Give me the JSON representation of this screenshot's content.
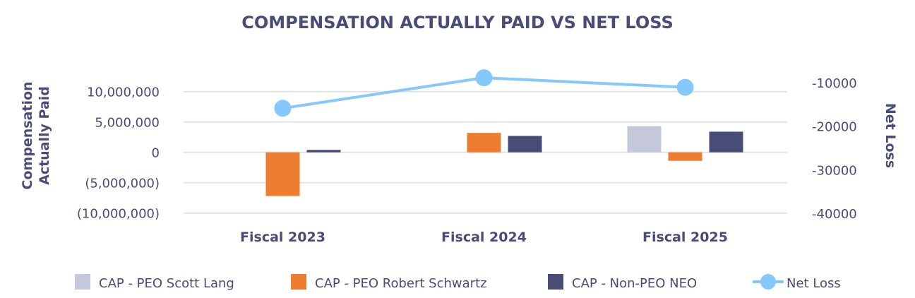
{
  "chart_data": {
    "type": "bar",
    "title": "COMPENSATION ACTUALLY PAID VS NET LOSS",
    "categories": [
      "Fiscal 2023",
      "Fiscal 2024",
      "Fiscal 2025"
    ],
    "ylabel": "Compensation Actually Paid",
    "y2label": "Net Loss",
    "yticks": [
      10000000,
      5000000,
      0,
      -5000000,
      -10000000
    ],
    "ytick_labels": [
      "10,000,000",
      "5,000,000",
      "0",
      "(5,000,000)",
      "(10,000,000)"
    ],
    "y2ticks": [
      -10000,
      -20000,
      -30000,
      -40000
    ],
    "y2tick_labels": [
      "-10000",
      "-20000",
      "-30000",
      "-40000"
    ],
    "grid": true,
    "legend_placement": "bottom",
    "series": [
      {
        "name": "CAP - PEO Scott Lang",
        "type": "bar",
        "axis": "left",
        "color": "#c5c7da",
        "values": [
          null,
          null,
          4300000
        ]
      },
      {
        "name": "CAP - PEO Robert Schwartz",
        "type": "bar",
        "axis": "left",
        "color": "#ed7d31",
        "values": [
          -7200000,
          3200000,
          -1400000
        ]
      },
      {
        "name": "CAP - Non-PEO NEO",
        "type": "bar",
        "axis": "left",
        "color": "#4a4c78",
        "values": [
          400000,
          2700000,
          3400000
        ]
      },
      {
        "name": "Net Loss",
        "type": "line",
        "axis": "right",
        "color": "#85c8fb",
        "values": [
          -15900,
          -8900,
          -11100
        ]
      }
    ]
  }
}
